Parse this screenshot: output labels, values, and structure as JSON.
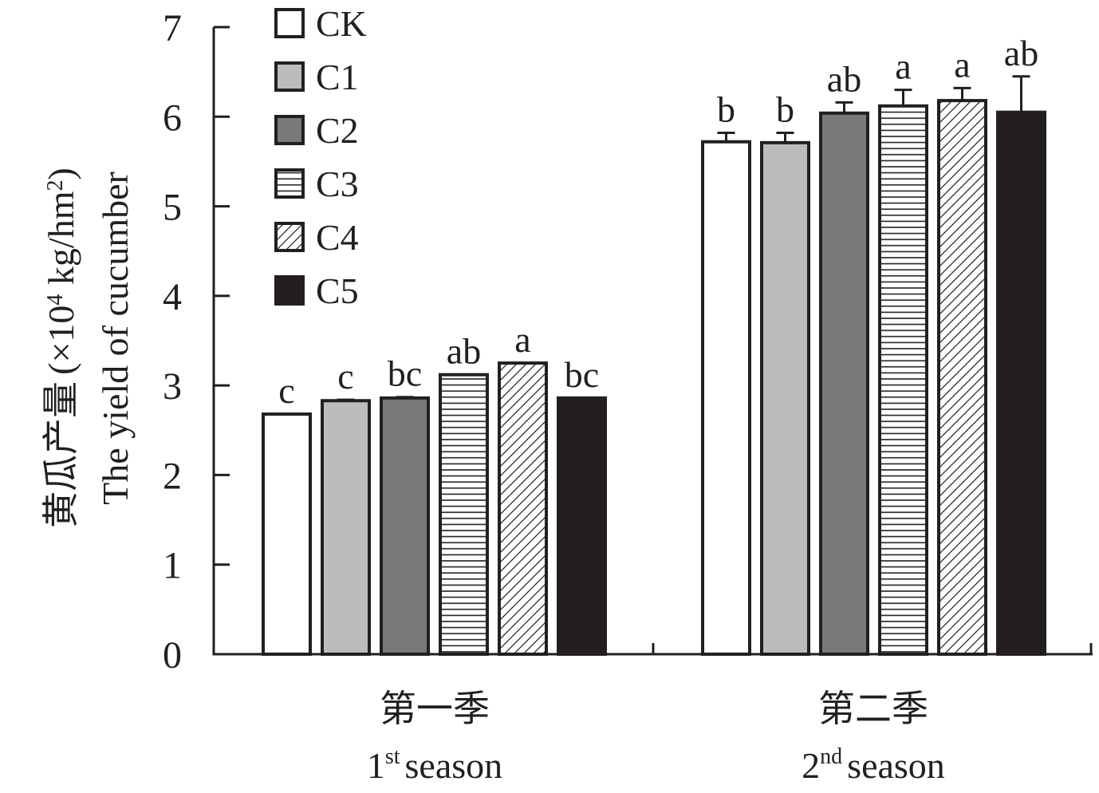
{
  "chart_data": {
    "type": "bar",
    "categories": [
      {
        "zh": "第一季",
        "en": "st season",
        "ordinal": "1",
        "sup": "st"
      },
      {
        "zh": "第二季",
        "en": "nd season",
        "ordinal": "2",
        "sup": "nd"
      }
    ],
    "ylabel": {
      "zh": "黄瓜产量",
      "unit_prefix": "(×10",
      "unit_exp": "4",
      "unit_mid": " kg/hm",
      "unit_exp2": "2",
      "unit_suffix": ")",
      "en": "The yield of cucumber"
    },
    "ylim": [
      0,
      7
    ],
    "yticks": [
      "0",
      "1",
      "2",
      "3",
      "4",
      "5",
      "6",
      "7"
    ],
    "legend_position": "top-left",
    "series": [
      {
        "name": "CK",
        "fill": "#ffffff",
        "pattern": "none",
        "values": [
          2.68,
          5.72
        ],
        "errors": [
          0.0,
          0.1
        ],
        "letters": [
          "c",
          "b"
        ]
      },
      {
        "name": "C1",
        "fill": "#bcbcbc",
        "pattern": "none",
        "values": [
          2.83,
          5.71
        ],
        "errors": [
          0.01,
          0.11
        ],
        "letters": [
          "c",
          "b"
        ]
      },
      {
        "name": "C2",
        "fill": "#7a7879",
        "pattern": "none",
        "values": [
          2.86,
          6.04
        ],
        "errors": [
          0.01,
          0.12
        ],
        "letters": [
          "bc",
          "ab"
        ]
      },
      {
        "name": "C3",
        "fill": "#ffffff",
        "pattern": "horizontal",
        "values": [
          3.12,
          6.12
        ],
        "errors": [
          0.0,
          0.18
        ],
        "letters": [
          "ab",
          "a"
        ]
      },
      {
        "name": "C4",
        "fill": "#ffffff",
        "pattern": "diagonal",
        "values": [
          3.25,
          6.18
        ],
        "errors": [
          0.0,
          0.14
        ],
        "letters": [
          "a",
          "a"
        ]
      },
      {
        "name": "C5",
        "fill": "#231f20",
        "pattern": "none",
        "values": [
          2.86,
          6.05
        ],
        "errors": [
          0.0,
          0.4
        ],
        "letters": [
          "bc",
          "ab"
        ]
      }
    ]
  }
}
